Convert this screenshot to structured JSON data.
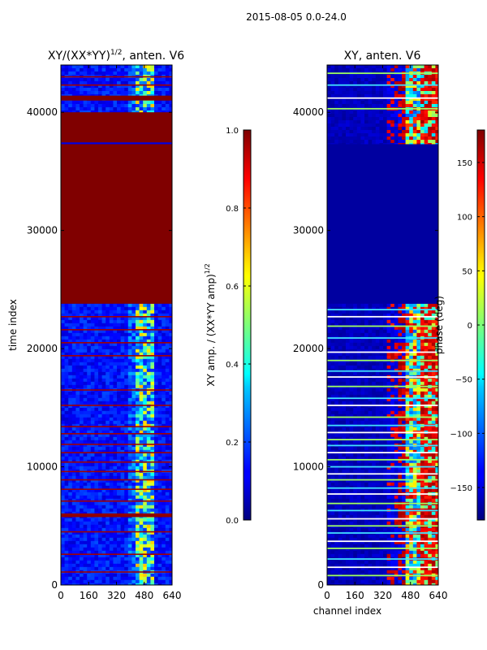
{
  "figure_title": "2015-08-05 0.0-24.0",
  "chart_data": [
    {
      "type": "heatmap",
      "title": "XY/(XX*YY)^1/2, anten. V6",
      "title_main": "XY/(XX*YY)",
      "title_exp": "1/2",
      "title_suffix": ", anten. V6",
      "xlabel": "",
      "ylabel": "time index",
      "xlim": [
        0,
        640
      ],
      "ylim": [
        0,
        44000
      ],
      "xticks": [
        0,
        160,
        320,
        480,
        640
      ],
      "yticks": [
        0,
        10000,
        20000,
        30000,
        40000
      ],
      "colormap": "jet",
      "colorbar": {
        "label": "XY amp. / (XX*YY amp)^1/2",
        "label_main": "XY amp. / (XX*YY amp)",
        "label_exp": "1/2",
        "range": [
          0.0,
          1.0
        ],
        "ticks": [
          "0.0",
          "0.2",
          "0.4",
          "0.6",
          "0.8",
          "1.0"
        ]
      },
      "regions": [
        {
          "y_from": 0,
          "y_to": 23800,
          "value": 0.12,
          "note": "mostly low with bright band 420-520"
        },
        {
          "y_from": 23800,
          "y_to": 37300,
          "value": 1.0
        },
        {
          "y_from": 37300,
          "y_to": 40000,
          "value": 1.0
        },
        {
          "y_from": 40000,
          "y_to": 44000,
          "value": 0.12
        }
      ]
    },
    {
      "type": "heatmap",
      "title": "XY, anten. V6",
      "xlabel": "channel index",
      "ylabel": "",
      "xlim": [
        0,
        640
      ],
      "ylim": [
        0,
        44000
      ],
      "xticks": [
        0,
        160,
        320,
        480,
        640
      ],
      "yticks": [
        0,
        10000,
        20000,
        30000,
        40000
      ],
      "colormap": "jet",
      "colorbar": {
        "label": "phase (deg)",
        "range": [
          -180,
          180
        ],
        "ticks": [
          "150",
          "100",
          "50",
          "0",
          "−50",
          "−100",
          "−150"
        ]
      },
      "regions": [
        {
          "y_from": 0,
          "y_to": 23800,
          "value": -160,
          "note": "red/orange noisy band at channels 400-640"
        },
        {
          "y_from": 23800,
          "y_to": 37300,
          "value": -175
        },
        {
          "y_from": 37300,
          "y_to": 44000,
          "value": -160
        }
      ]
    }
  ]
}
